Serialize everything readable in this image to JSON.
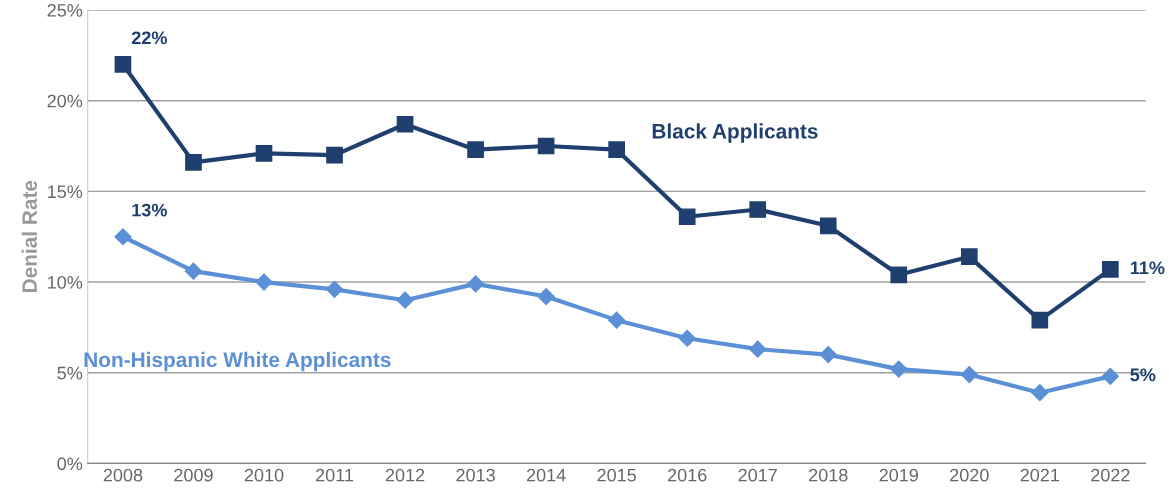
{
  "chart_data": {
    "type": "line",
    "ylabel": "Denial Rate",
    "categories": [
      "2008",
      "2009",
      "2010",
      "2011",
      "2012",
      "2013",
      "2014",
      "2015",
      "2016",
      "2017",
      "2018",
      "2019",
      "2020",
      "2021",
      "2022"
    ],
    "series": [
      {
        "name": "Black Applicants",
        "color": "#1f3f6e",
        "marker": "square",
        "values": [
          22.0,
          16.6,
          17.1,
          17.0,
          18.7,
          17.3,
          17.5,
          17.3,
          13.6,
          14.0,
          13.1,
          10.4,
          11.4,
          7.9,
          10.7
        ]
      },
      {
        "name": "Non-Hispanic White Applicants",
        "color": "#5b8fd6",
        "marker": "diamond",
        "values": [
          12.5,
          10.6,
          10.0,
          9.6,
          9.0,
          9.9,
          9.2,
          7.9,
          6.9,
          6.3,
          6.0,
          5.2,
          4.9,
          3.9,
          4.8
        ]
      }
    ],
    "ylim": [
      0,
      25
    ],
    "yticks": [
      {
        "value": 0,
        "label": "0%"
      },
      {
        "value": 5,
        "label": "5%"
      },
      {
        "value": 10,
        "label": "10%"
      },
      {
        "value": 15,
        "label": "15%"
      },
      {
        "value": 20,
        "label": "20%"
      },
      {
        "value": 25,
        "label": "25%"
      }
    ],
    "grid": "y",
    "legend": false,
    "line_style": "solid",
    "annotations": [
      {
        "text": "22%",
        "x": "2008",
        "y": 22.0
      },
      {
        "text": "13%",
        "x": "2008",
        "y": 12.5
      },
      {
        "text": "11%",
        "x": "2022",
        "y": 10.7
      },
      {
        "text": "5%",
        "x": "2022",
        "y": 4.8
      }
    ]
  }
}
